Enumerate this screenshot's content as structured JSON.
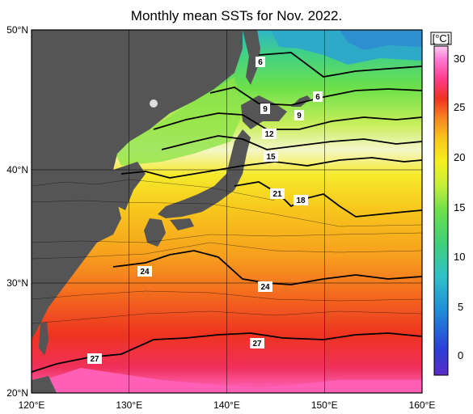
{
  "title": "Monthly mean SSTs for Nov. 2022.",
  "unit": "[°C]",
  "lat_labels": [
    "50°N",
    "40°N",
    "30°N",
    "20°N"
  ],
  "lon_labels": [
    "120°E",
    "130°E",
    "140°E",
    "150°E",
    "160°E"
  ],
  "colorbar": {
    "ticks": [
      "30",
      "25",
      "20",
      "15",
      "10",
      "5",
      "0"
    ],
    "range": [
      -2,
      32
    ],
    "colors": [
      "#5a2cc8",
      "#2b3fd8",
      "#1f8fd8",
      "#2fc1c8",
      "#3fd07a",
      "#5fe04a",
      "#b8ea2e",
      "#f6ef1f",
      "#f8c51c",
      "#f7871f",
      "#ee3320",
      "#ff3c8c",
      "#ff7ad6",
      "#ffc8f0"
    ]
  },
  "contour_labels": [
    {
      "id": "6a",
      "text": "6"
    },
    {
      "id": "6b",
      "text": "6"
    },
    {
      "id": "9a",
      "text": "9"
    },
    {
      "id": "9b",
      "text": "9"
    },
    {
      "id": "12",
      "text": "12"
    },
    {
      "id": "15",
      "text": "15"
    },
    {
      "id": "21",
      "text": "21"
    },
    {
      "id": "18",
      "text": "18"
    },
    {
      "id": "24a",
      "text": "24"
    },
    {
      "id": "24b",
      "text": "24"
    },
    {
      "id": "27a",
      "text": "27"
    },
    {
      "id": "27b",
      "text": "27"
    }
  ],
  "colors": {
    "land": "#555555",
    "isotherm": "#000000"
  }
}
